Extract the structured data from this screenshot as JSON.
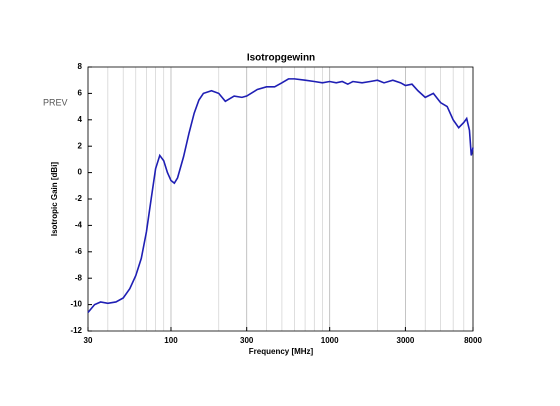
{
  "nav": {
    "prev": "PREV"
  },
  "chart_data": {
    "type": "line",
    "title": "Isotropgewinn",
    "x_label": "Frequency [MHz]",
    "y_label": "Isotropic Gain [dBi]",
    "xscale": "log",
    "xlim": [
      30,
      8000
    ],
    "xticks": [
      30,
      100,
      300,
      1000,
      3000,
      8000
    ],
    "ylim": [
      -12,
      8
    ],
    "yticks": [
      -12,
      -10,
      -8,
      -6,
      -4,
      -2,
      0,
      2,
      4,
      6,
      8
    ],
    "grid": true,
    "series": [
      {
        "color": "#1f1fb4",
        "x": [
          30,
          33,
          36,
          40,
          45,
          50,
          55,
          60,
          65,
          70,
          75,
          80,
          85,
          90,
          95,
          100,
          105,
          110,
          120,
          130,
          140,
          150,
          160,
          180,
          200,
          220,
          250,
          280,
          300,
          350,
          400,
          450,
          500,
          550,
          600,
          700,
          800,
          900,
          1000,
          1100,
          1200,
          1300,
          1400,
          1600,
          1800,
          2000,
          2200,
          2500,
          2800,
          3000,
          3300,
          3600,
          4000,
          4500,
          5000,
          5500,
          6000,
          6500,
          7000,
          7300,
          7600,
          7800,
          8000
        ],
        "values": [
          -10.6,
          -10.0,
          -9.8,
          -9.9,
          -9.8,
          -9.5,
          -8.8,
          -7.8,
          -6.5,
          -4.5,
          -2,
          0.3,
          1.3,
          0.9,
          0,
          -0.6,
          -0.8,
          -0.4,
          1.2,
          3,
          4.5,
          5.5,
          6.0,
          6.2,
          6.0,
          5.4,
          5.8,
          5.7,
          5.8,
          6.3,
          6.5,
          6.5,
          6.8,
          7.1,
          7.1,
          7.0,
          6.9,
          6.8,
          6.9,
          6.8,
          6.9,
          6.7,
          6.9,
          6.8,
          6.9,
          7.0,
          6.8,
          7.0,
          6.8,
          6.6,
          6.7,
          6.2,
          5.7,
          6.0,
          5.3,
          5.0,
          4.0,
          3.4,
          3.8,
          4.1,
          3.2,
          1.3,
          1.9
        ]
      }
    ]
  }
}
